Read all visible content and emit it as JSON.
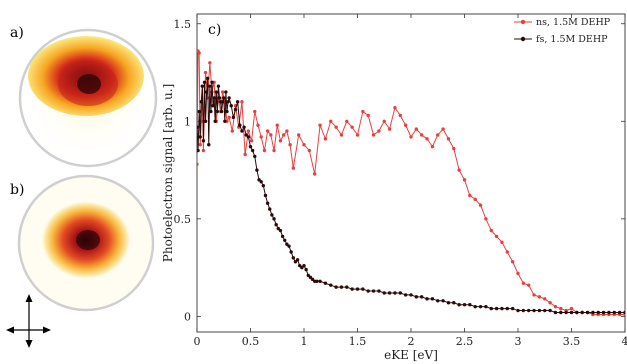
{
  "panels": {
    "a": "a)",
    "b": "b)",
    "c": "c)"
  },
  "colors": {
    "ns": "#e8403e",
    "fs": "#2a0a0a",
    "ring": "#cfcfcf",
    "hot_core": "#3a0608",
    "hot_mid": "#c8241a",
    "hot_outer": "#f5a21c",
    "hot_edge": "#fdf08a"
  },
  "images": {
    "a": {
      "description_icon": "velocity-map-image-ns"
    },
    "b": {
      "description_icon": "velocity-map-image-fs"
    }
  },
  "polarization_arrow_icon": "double-arrow-cross-icon",
  "chart_data": {
    "type": "line",
    "xlabel": "eKE [eV]",
    "ylabel": "Photoelectron signal [arb. u.]",
    "xlim": [
      0,
      4
    ],
    "ylim": [
      -0.08,
      1.55
    ],
    "xticks": [
      0,
      0.5,
      1,
      1.5,
      2,
      2.5,
      3,
      3.5,
      4
    ],
    "xtick_labels": [
      "0",
      "0.5",
      "1",
      "1.5",
      "2",
      "2.5",
      "3",
      "3.5",
      "4"
    ],
    "yticks": [
      0,
      0.5,
      1,
      1.5
    ],
    "ytick_labels": [
      "0",
      "0.5",
      "1",
      "1.5"
    ],
    "grid": false,
    "legend_position": "top-right",
    "series": [
      {
        "name": "ns, 1.5M DEHP",
        "color": "#e8403e",
        "x": [
          0.0,
          0.01,
          0.02,
          0.03,
          0.04,
          0.05,
          0.06,
          0.08,
          0.1,
          0.12,
          0.14,
          0.16,
          0.18,
          0.2,
          0.22,
          0.24,
          0.26,
          0.28,
          0.3,
          0.33,
          0.36,
          0.39,
          0.42,
          0.45,
          0.48,
          0.51,
          0.54,
          0.57,
          0.6,
          0.63,
          0.66,
          0.69,
          0.72,
          0.75,
          0.78,
          0.81,
          0.84,
          0.87,
          0.9,
          0.95,
          1.0,
          1.05,
          1.1,
          1.15,
          1.2,
          1.25,
          1.3,
          1.35,
          1.4,
          1.45,
          1.5,
          1.55,
          1.6,
          1.65,
          1.7,
          1.75,
          1.8,
          1.85,
          1.9,
          1.95,
          2.0,
          2.05,
          2.1,
          2.15,
          2.2,
          2.25,
          2.3,
          2.35,
          2.4,
          2.45,
          2.5,
          2.55,
          2.6,
          2.65,
          2.7,
          2.75,
          2.8,
          2.85,
          2.9,
          2.95,
          3.0,
          3.05,
          3.1,
          3.15,
          3.2,
          3.25,
          3.3,
          3.35,
          3.4,
          3.45,
          3.5,
          3.55,
          3.6,
          3.65,
          3.7,
          3.75,
          3.8,
          3.85,
          3.9,
          3.95,
          4.0
        ],
        "y": [
          0.78,
          1.36,
          1.35,
          0.88,
          1.0,
          1.18,
          0.85,
          1.25,
          1.12,
          1.3,
          1.15,
          1.2,
          1.0,
          1.12,
          1.05,
          1.15,
          1.1,
          1.0,
          1.02,
          0.95,
          1.08,
          0.97,
          1.1,
          0.83,
          0.95,
          0.9,
          1.05,
          0.98,
          0.92,
          0.85,
          0.95,
          0.93,
          0.85,
          0.98,
          0.9,
          0.93,
          0.95,
          0.88,
          0.76,
          0.93,
          0.88,
          0.85,
          0.73,
          0.98,
          0.91,
          1.0,
          0.97,
          0.93,
          1.0,
          0.97,
          0.93,
          1.05,
          1.03,
          0.93,
          0.95,
          1.0,
          0.96,
          1.07,
          1.03,
          0.98,
          0.92,
          0.96,
          0.93,
          0.91,
          0.87,
          0.93,
          0.96,
          0.91,
          0.86,
          0.75,
          0.7,
          0.62,
          0.6,
          0.57,
          0.5,
          0.44,
          0.41,
          0.38,
          0.33,
          0.28,
          0.22,
          0.17,
          0.16,
          0.11,
          0.1,
          0.09,
          0.07,
          0.05,
          0.04,
          0.03,
          0.04,
          0.02,
          0.02,
          0.02,
          0.01,
          0.01,
          0.01,
          0.01,
          0.01,
          0.01,
          0.01
        ]
      },
      {
        "name": "fs, 1.5M DEHP",
        "color": "#2a0a0a",
        "x": [
          0.0,
          0.01,
          0.02,
          0.03,
          0.04,
          0.05,
          0.06,
          0.07,
          0.08,
          0.09,
          0.1,
          0.11,
          0.12,
          0.13,
          0.14,
          0.15,
          0.16,
          0.17,
          0.18,
          0.19,
          0.2,
          0.21,
          0.22,
          0.23,
          0.24,
          0.25,
          0.26,
          0.27,
          0.28,
          0.29,
          0.3,
          0.32,
          0.34,
          0.36,
          0.38,
          0.4,
          0.42,
          0.44,
          0.46,
          0.48,
          0.5,
          0.52,
          0.54,
          0.56,
          0.58,
          0.6,
          0.62,
          0.64,
          0.66,
          0.68,
          0.7,
          0.72,
          0.74,
          0.76,
          0.78,
          0.8,
          0.82,
          0.84,
          0.86,
          0.88,
          0.9,
          0.92,
          0.94,
          0.96,
          0.98,
          1.0,
          1.02,
          1.04,
          1.06,
          1.08,
          1.1,
          1.12,
          1.15,
          1.2,
          1.25,
          1.3,
          1.35,
          1.4,
          1.45,
          1.5,
          1.55,
          1.6,
          1.65,
          1.7,
          1.75,
          1.8,
          1.85,
          1.9,
          1.95,
          2.0,
          2.05,
          2.1,
          2.15,
          2.2,
          2.25,
          2.3,
          2.35,
          2.4,
          2.45,
          2.5,
          2.55,
          2.6,
          2.65,
          2.7,
          2.75,
          2.8,
          2.85,
          2.9,
          2.95,
          3.0,
          3.05,
          3.1,
          3.15,
          3.2,
          3.25,
          3.3,
          3.35,
          3.4,
          3.45,
          3.5,
          3.55,
          3.6,
          3.65,
          3.7,
          3.75,
          3.8,
          3.85,
          3.9,
          3.95,
          4.0
        ],
        "y": [
          0.97,
          0.85,
          1.05,
          0.92,
          1.1,
          1.18,
          0.9,
          1.2,
          1.0,
          1.15,
          1.22,
          0.88,
          1.18,
          1.05,
          1.2,
          1.08,
          1.12,
          1.0,
          1.15,
          1.05,
          1.18,
          1.12,
          1.1,
          1.05,
          1.1,
          1.12,
          1.0,
          1.15,
          1.05,
          1.1,
          1.12,
          1.08,
          1.02,
          1.06,
          1.1,
          0.98,
          0.95,
          0.97,
          0.93,
          0.92,
          0.87,
          0.85,
          0.82,
          0.75,
          0.7,
          0.69,
          0.67,
          0.62,
          0.58,
          0.55,
          0.52,
          0.5,
          0.47,
          0.45,
          0.44,
          0.41,
          0.39,
          0.37,
          0.36,
          0.33,
          0.3,
          0.28,
          0.29,
          0.26,
          0.25,
          0.26,
          0.24,
          0.21,
          0.2,
          0.19,
          0.18,
          0.18,
          0.18,
          0.17,
          0.16,
          0.15,
          0.15,
          0.15,
          0.14,
          0.14,
          0.14,
          0.13,
          0.13,
          0.13,
          0.12,
          0.12,
          0.12,
          0.12,
          0.11,
          0.11,
          0.1,
          0.1,
          0.09,
          0.09,
          0.08,
          0.08,
          0.07,
          0.07,
          0.06,
          0.06,
          0.06,
          0.05,
          0.05,
          0.05,
          0.04,
          0.04,
          0.04,
          0.04,
          0.04,
          0.03,
          0.03,
          0.03,
          0.03,
          0.03,
          0.03,
          0.03,
          0.02,
          0.02,
          0.02,
          0.02,
          0.02,
          0.02,
          0.02,
          0.02,
          0.02,
          0.02,
          0.02,
          0.02,
          0.02,
          0.02
        ]
      }
    ]
  }
}
